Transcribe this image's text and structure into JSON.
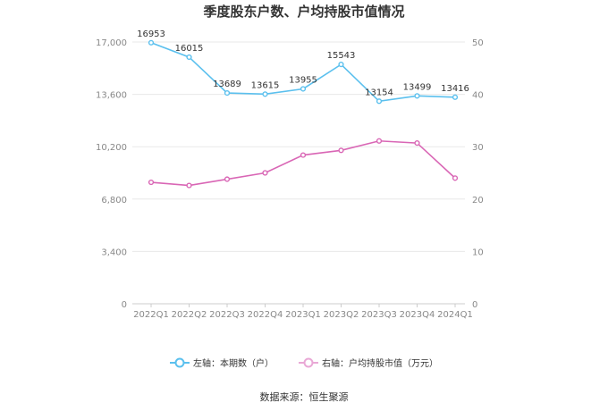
{
  "chart_data": {
    "type": "line",
    "title": "季度股东户数、户均持股市值情况",
    "categories": [
      "2022Q1",
      "2022Q2",
      "2022Q3",
      "2022Q4",
      "2023Q1",
      "2023Q2",
      "2023Q3",
      "2023Q4",
      "2024Q1"
    ],
    "left_axis": {
      "ticks": [
        "0",
        "3,400",
        "6,800",
        "10,200",
        "13,600",
        "17,000"
      ],
      "tick_values": [
        0,
        3400,
        6800,
        10200,
        13600,
        17000
      ],
      "ylim": [
        0,
        17000
      ]
    },
    "right_axis": {
      "ticks": [
        "0",
        "10",
        "20",
        "30",
        "40",
        "50"
      ],
      "tick_values": [
        0,
        10,
        20,
        30,
        40,
        50
      ],
      "ylim": [
        0,
        50
      ]
    },
    "grid": true,
    "legend_position": "bottom",
    "series": [
      {
        "name": "左轴：本期数（户）",
        "axis": "left",
        "color": "#5bc0ee",
        "values": [
          16953,
          16015,
          13689,
          13615,
          13955,
          15543,
          13154,
          13499,
          13416
        ],
        "data_labels": [
          "16953",
          "16015",
          "13689",
          "13615",
          "13955",
          "15543",
          "13154",
          "13499",
          "13416"
        ]
      },
      {
        "name": "右轴：户均持股市值（万元）",
        "axis": "right",
        "color": "#d966b5",
        "values": [
          23.2,
          22.6,
          23.8,
          25.0,
          28.4,
          29.3,
          31.1,
          30.7,
          24.0
        ],
        "data_labels": []
      }
    ],
    "source": "数据来源：恒生聚源"
  }
}
